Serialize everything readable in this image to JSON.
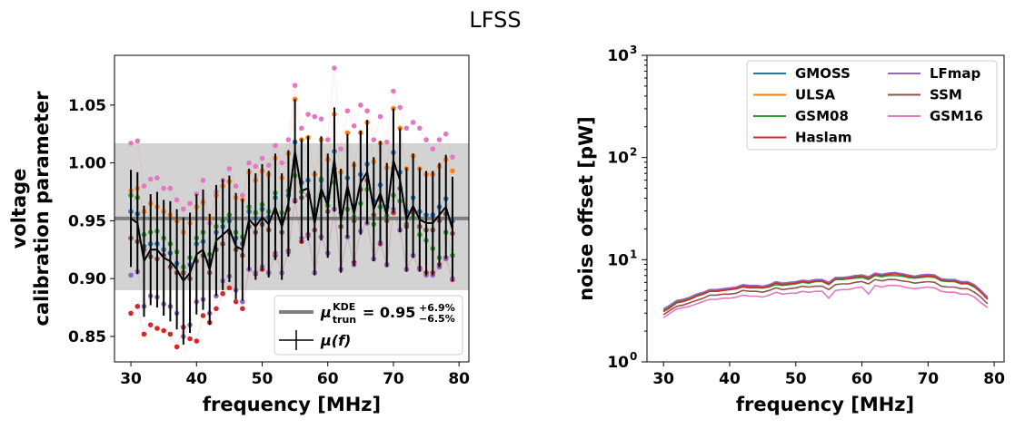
{
  "figure": {
    "title": "LFSS"
  },
  "chart_data": [
    {
      "type": "scatter",
      "panel": "left",
      "xlabel": "frequency [MHz]",
      "ylabel_line1": "voltage",
      "ylabel_line2": "calibration parameter",
      "xlim": [
        27.5,
        81.5
      ],
      "ylim": [
        0.828,
        1.093
      ],
      "xticks": [
        30,
        40,
        50,
        60,
        70,
        80
      ],
      "yticks": [
        0.85,
        0.9,
        0.95,
        1.0,
        1.05
      ],
      "ytick_labels": [
        "0.85",
        "0.90",
        "0.95",
        "1.00",
        "1.05"
      ],
      "band": {
        "center": 0.952,
        "low": 0.89,
        "high": 1.017,
        "color": "#d3d3d3"
      },
      "legend": {
        "position": "lower right",
        "kde_label": {
          "mu": "μ",
          "sub": "trun",
          "sup": "KDE",
          "value": " = 0.95",
          "plus": "+6.9%",
          "minus": "−6.5%"
        },
        "mean_label": "μ(f)"
      },
      "x": [
        30,
        31,
        32,
        33,
        34,
        35,
        36,
        37,
        38,
        39,
        40,
        41,
        42,
        43,
        44,
        45,
        46,
        47,
        48,
        49,
        50,
        51,
        52,
        53,
        54,
        55,
        56,
        57,
        58,
        59,
        60,
        61,
        62,
        63,
        64,
        65,
        66,
        67,
        68,
        69,
        70,
        71,
        72,
        73,
        74,
        75,
        76,
        77,
        78,
        79
      ],
      "mean": [
        0.952,
        0.948,
        0.915,
        0.925,
        0.925,
        0.918,
        0.915,
        0.908,
        0.898,
        0.905,
        0.921,
        0.925,
        0.908,
        0.933,
        0.938,
        0.943,
        0.928,
        0.925,
        0.951,
        0.945,
        0.953,
        0.947,
        0.962,
        0.945,
        0.965,
        1.01,
        0.976,
        0.978,
        0.948,
        0.978,
        0.963,
        1.003,
        0.95,
        0.98,
        0.956,
        0.983,
        0.992,
        0.96,
        0.974,
        0.955,
        1.002,
        0.985,
        0.951,
        0.963,
        0.951,
        0.948,
        0.948,
        0.955,
        0.962,
        0.943
      ],
      "err": [
        0.042,
        0.044,
        0.048,
        0.048,
        0.05,
        0.05,
        0.052,
        0.052,
        0.055,
        0.052,
        0.052,
        0.052,
        0.048,
        0.048,
        0.048,
        0.046,
        0.046,
        0.044,
        0.044,
        0.046,
        0.046,
        0.046,
        0.046,
        0.046,
        0.046,
        0.045,
        0.045,
        0.045,
        0.045,
        0.045,
        0.045,
        0.045,
        0.045,
        0.045,
        0.045,
        0.045,
        0.045,
        0.045,
        0.045,
        0.045,
        0.045,
        0.045,
        0.045,
        0.045,
        0.045,
        0.045,
        0.045,
        0.045,
        0.045,
        0.045
      ],
      "series": [
        {
          "name": "GMOSS",
          "color": "#1f77b4",
          "values": [
            0.958,
            0.956,
            0.928,
            0.93,
            0.93,
            0.925,
            0.922,
            0.913,
            0.905,
            0.912,
            0.93,
            0.932,
            0.915,
            0.94,
            0.945,
            0.95,
            0.935,
            0.93,
            0.958,
            0.952,
            0.96,
            0.953,
            0.97,
            0.952,
            0.972,
            1.018,
            0.983,
            0.985,
            0.955,
            0.985,
            0.97,
            1.01,
            0.957,
            0.987,
            0.963,
            0.99,
            0.999,
            0.967,
            0.981,
            0.962,
            1.009,
            0.992,
            0.958,
            0.97,
            0.958,
            0.955,
            0.955,
            0.962,
            0.969,
            0.95
          ]
        },
        {
          "name": "ULSA",
          "color": "#ff7f0e",
          "values": [
            0.976,
            0.978,
            0.958,
            0.965,
            0.962,
            0.958,
            0.955,
            0.95,
            0.94,
            0.948,
            0.962,
            0.966,
            0.952,
            0.972,
            0.98,
            0.984,
            0.97,
            0.968,
            0.992,
            0.985,
            0.993,
            0.99,
            1.004,
            0.987,
            1.008,
            1.055,
            1.02,
            1.022,
            0.99,
            1.02,
            1.003,
            1.042,
            0.992,
            1.026,
            0.998,
            1.026,
            1.035,
            1.001,
            1.017,
            0.996,
            1.047,
            1.03,
            0.995,
            1.006,
            0.995,
            0.99,
            0.99,
            0.997,
            1.003,
            0.993
          ]
        },
        {
          "name": "GSM08",
          "color": "#2ca02c",
          "values": [
            0.972,
            0.97,
            0.938,
            0.94,
            0.941,
            0.935,
            0.93,
            0.923,
            0.91,
            0.918,
            0.935,
            0.94,
            0.921,
            0.945,
            0.95,
            0.955,
            0.94,
            0.936,
            0.962,
            0.957,
            0.964,
            0.958,
            0.974,
            0.957,
            0.976,
            0.989,
            0.975,
            0.972,
            0.96,
            0.986,
            0.963,
            0.983,
            0.945,
            0.96,
            0.953,
            0.965,
            0.977,
            0.947,
            0.962,
            0.954,
            0.972,
            0.967,
            0.947,
            0.953,
            0.938,
            0.933,
            0.926,
            0.918,
            0.94,
            0.92
          ]
        },
        {
          "name": "Haslam",
          "color": "#d62728",
          "values": [
            0.87,
            0.876,
            0.852,
            0.86,
            0.857,
            0.855,
            0.852,
            0.841,
            0.858,
            0.848,
            0.846,
            0.868,
            0.862,
            0.874,
            0.887,
            0.892,
            0.88,
            0.874,
            0.908,
            0.904,
            0.908,
            0.905,
            0.92,
            0.905,
            0.924,
            0.967,
            0.932,
            0.938,
            0.905,
            0.936,
            0.922,
            0.96,
            0.908,
            0.936,
            0.914,
            0.941,
            0.948,
            0.917,
            0.93,
            0.912,
            0.957,
            0.942,
            0.908,
            0.92,
            0.909,
            0.905,
            0.905,
            0.912,
            0.918,
            0.899
          ]
        },
        {
          "name": "LFmap",
          "color": "#9467bd",
          "values": [
            0.903,
            0.906,
            0.876,
            0.885,
            0.884,
            0.878,
            0.876,
            0.87,
            0.85,
            0.86,
            0.88,
            0.882,
            0.87,
            0.885,
            0.898,
            0.902,
            0.89,
            0.88,
            0.908,
            0.905,
            0.91,
            0.905,
            0.922,
            0.905,
            0.923,
            0.968,
            0.935,
            0.937,
            0.905,
            0.936,
            0.922,
            0.96,
            0.908,
            0.936,
            0.912,
            0.941,
            0.948,
            0.917,
            0.931,
            0.912,
            0.96,
            0.942,
            0.908,
            0.92,
            0.908,
            0.903,
            0.903,
            0.91,
            0.917,
            0.9
          ]
        },
        {
          "name": "SSM",
          "color": "#8c564b",
          "values": [
            0.935,
            0.932,
            0.925,
            0.919,
            0.917,
            0.92,
            0.91,
            0.905,
            0.905,
            0.9,
            0.915,
            0.92,
            0.905,
            0.925,
            0.93,
            0.94,
            0.925,
            0.92,
            0.945,
            0.94,
            0.947,
            0.942,
            0.957,
            0.94,
            0.96,
            1.002,
            0.97,
            0.972,
            0.942,
            0.972,
            0.958,
            0.995,
            0.945,
            0.973,
            0.95,
            0.977,
            0.985,
            0.955,
            0.968,
            0.95,
            0.995,
            0.978,
            0.945,
            0.957,
            0.945,
            0.942,
            0.942,
            0.95,
            0.956,
            0.939
          ]
        },
        {
          "name": "GSM16",
          "color": "#e377c2",
          "values": [
            1.017,
            1.019,
            0.98,
            0.986,
            0.987,
            0.978,
            0.978,
            0.968,
            0.96,
            0.965,
            0.973,
            0.985,
            0.948,
            0.975,
            0.985,
            0.995,
            0.98,
            0.972,
            1.0,
            0.997,
            1.004,
            0.998,
            1.015,
            1.0,
            1.02,
            1.067,
            1.03,
            1.042,
            1.04,
            1.038,
            1.02,
            1.082,
            1.012,
            1.045,
            1.032,
            1.05,
            1.045,
            1.02,
            1.04,
            1.018,
            1.062,
            1.048,
            1.03,
            1.035,
            1.03,
            1.02,
            1.012,
            1.02,
            1.025,
            1.005
          ]
        }
      ]
    },
    {
      "type": "line",
      "panel": "right",
      "xlabel": "frequency [MHz]",
      "ylabel": "noise offset [pW]",
      "yscale": "log",
      "xlim": [
        27.5,
        81.5
      ],
      "ylim": [
        1,
        1000
      ],
      "xticks": [
        30,
        40,
        50,
        60,
        70,
        80
      ],
      "yticks": [
        1,
        10,
        100,
        1000
      ],
      "ytick_base": "10",
      "ytick_exponents": [
        "0",
        "1",
        "2",
        "3"
      ],
      "legend": {
        "position": "upper right",
        "ncol": 2
      },
      "x": [
        30,
        31,
        32,
        33,
        34,
        35,
        36,
        37,
        38,
        39,
        40,
        41,
        42,
        43,
        44,
        45,
        46,
        47,
        48,
        49,
        50,
        51,
        52,
        53,
        54,
        55,
        56,
        57,
        58,
        59,
        60,
        61,
        62,
        63,
        64,
        65,
        66,
        67,
        68,
        69,
        70,
        71,
        72,
        73,
        74,
        75,
        76,
        77,
        78,
        79
      ],
      "series": [
        {
          "name": "GMOSS",
          "color": "#1f77b4",
          "values": [
            3.2,
            3.5,
            3.9,
            4.0,
            4.2,
            4.5,
            4.7,
            5.0,
            5.0,
            5.1,
            5.2,
            5.3,
            5.6,
            5.5,
            5.5,
            5.4,
            5.6,
            6.0,
            5.8,
            5.9,
            6.0,
            6.2,
            6.1,
            6.3,
            6.3,
            5.9,
            6.6,
            6.6,
            6.7,
            6.9,
            7.0,
            6.7,
            7.3,
            7.1,
            7.3,
            7.4,
            7.2,
            7.0,
            6.8,
            7.0,
            7.1,
            7.0,
            6.4,
            6.3,
            6.3,
            6.0,
            6.0,
            5.6,
            4.9,
            4.2
          ]
        },
        {
          "name": "ULSA",
          "color": "#ff7f0e",
          "values": [
            3.1,
            3.4,
            3.8,
            3.9,
            4.1,
            4.4,
            4.6,
            4.9,
            4.9,
            5.0,
            5.1,
            5.2,
            5.5,
            5.4,
            5.4,
            5.3,
            5.5,
            5.9,
            5.7,
            5.8,
            5.9,
            6.1,
            6.0,
            6.2,
            6.2,
            5.8,
            6.5,
            6.5,
            6.6,
            6.8,
            6.9,
            6.6,
            7.2,
            7.0,
            7.2,
            7.3,
            7.1,
            6.9,
            6.7,
            6.9,
            7.0,
            6.9,
            6.3,
            6.2,
            6.2,
            5.9,
            5.9,
            5.5,
            4.8,
            4.1
          ]
        },
        {
          "name": "GSM08",
          "color": "#2ca02c",
          "values": [
            3.2,
            3.5,
            3.9,
            4.0,
            4.2,
            4.4,
            4.6,
            4.9,
            4.9,
            5.0,
            5.1,
            5.2,
            5.4,
            5.3,
            5.3,
            5.3,
            5.4,
            5.7,
            5.6,
            5.7,
            5.8,
            6.0,
            5.9,
            6.1,
            6.1,
            5.7,
            6.4,
            6.4,
            6.5,
            6.6,
            6.7,
            6.4,
            7.0,
            6.8,
            7.0,
            7.0,
            6.9,
            6.7,
            6.6,
            6.7,
            6.8,
            6.7,
            6.2,
            6.1,
            6.1,
            5.8,
            5.8,
            5.4,
            4.8,
            4.1
          ]
        },
        {
          "name": "Haslam",
          "color": "#d62728",
          "values": [
            3.1,
            3.4,
            3.8,
            3.9,
            4.1,
            4.4,
            4.6,
            4.9,
            4.9,
            5.0,
            5.1,
            5.2,
            5.5,
            5.4,
            5.4,
            5.3,
            5.5,
            5.9,
            5.7,
            5.8,
            5.9,
            6.1,
            6.0,
            6.2,
            6.2,
            5.8,
            6.5,
            6.5,
            6.6,
            6.8,
            6.9,
            6.6,
            7.2,
            7.0,
            7.2,
            7.3,
            7.1,
            6.9,
            6.7,
            6.9,
            7.0,
            6.9,
            6.3,
            6.2,
            6.2,
            5.9,
            5.9,
            5.5,
            4.8,
            4.1
          ]
        },
        {
          "name": "LFmap",
          "color": "#9467bd",
          "values": [
            3.3,
            3.6,
            4.0,
            4.1,
            4.3,
            4.6,
            4.8,
            5.1,
            5.1,
            5.2,
            5.3,
            5.4,
            5.7,
            5.6,
            5.6,
            5.5,
            5.7,
            6.1,
            5.9,
            6.0,
            6.1,
            6.3,
            6.2,
            6.4,
            6.4,
            6.0,
            6.7,
            6.7,
            6.8,
            7.0,
            7.1,
            6.8,
            7.4,
            7.2,
            7.4,
            7.5,
            7.3,
            7.1,
            6.9,
            7.1,
            7.2,
            7.1,
            6.5,
            6.4,
            6.4,
            6.1,
            6.1,
            5.7,
            5.0,
            4.3
          ]
        },
        {
          "name": "SSM",
          "color": "#8c564b",
          "values": [
            2.9,
            3.2,
            3.5,
            3.6,
            3.8,
            4.0,
            4.2,
            4.5,
            4.5,
            4.6,
            4.6,
            4.7,
            5.0,
            4.9,
            4.9,
            4.8,
            5.0,
            5.3,
            5.1,
            5.2,
            5.3,
            5.5,
            5.4,
            5.5,
            5.5,
            5.1,
            5.7,
            5.8,
            5.8,
            6.0,
            6.1,
            5.8,
            6.4,
            6.2,
            6.4,
            6.4,
            6.2,
            6.1,
            5.9,
            6.0,
            6.1,
            6.0,
            5.5,
            5.4,
            5.4,
            5.2,
            5.2,
            4.8,
            4.3,
            3.7
          ]
        },
        {
          "name": "GSM16",
          "color": "#e377c2",
          "values": [
            2.7,
            3.0,
            3.3,
            3.4,
            3.5,
            3.7,
            3.9,
            4.1,
            4.1,
            4.2,
            4.2,
            4.3,
            4.5,
            4.4,
            4.4,
            4.3,
            4.5,
            4.8,
            4.6,
            4.7,
            4.7,
            4.9,
            4.8,
            4.9,
            4.9,
            4.2,
            5.0,
            5.1,
            5.1,
            5.3,
            5.4,
            4.6,
            5.6,
            5.4,
            5.6,
            5.6,
            5.5,
            5.3,
            5.2,
            5.3,
            5.4,
            5.3,
            4.9,
            4.8,
            4.8,
            4.6,
            4.6,
            4.3,
            3.8,
            3.4
          ]
        }
      ]
    }
  ]
}
